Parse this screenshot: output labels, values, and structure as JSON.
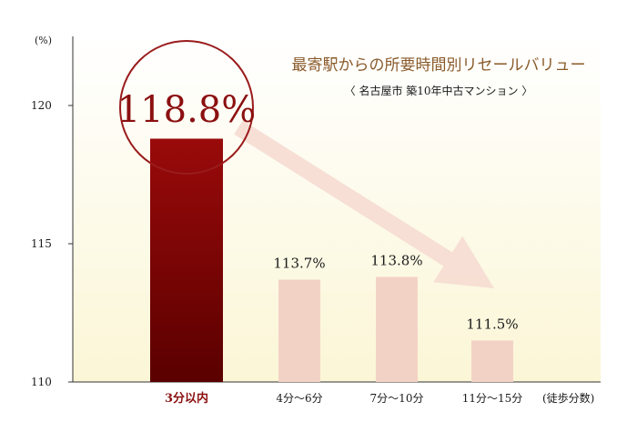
{
  "chart_data": {
    "type": "bar",
    "title": "最寄駅からの所要時間別リセールバリュー",
    "subtitle": "〈 名古屋市 築10年中古マンション 〉",
    "ylabel": "(%)",
    "xlabel": "(徒歩分数)",
    "ylim": [
      110,
      122.5
    ],
    "yticks": [
      110,
      115,
      120
    ],
    "categories": [
      "3分以内",
      "4分〜6分",
      "7分〜10分",
      "11分〜15分"
    ],
    "values": [
      118.8,
      113.7,
      113.8,
      111.5
    ],
    "value_labels": [
      "118.8%",
      "113.7%",
      "113.8%",
      "111.5%"
    ],
    "highlight_index": 0,
    "grid": false,
    "colors": {
      "highlight_top": "#9a0a0a",
      "highlight_bottom": "#5a0000",
      "bar": "#f3d2c6",
      "circle": "#9a1c1c",
      "arrow": "#f6dbd3",
      "title": "#8a5a2a",
      "text": "#1a1a1a",
      "highlight_label": "#8b1010",
      "bg_bottom": "#fbf6d6"
    }
  }
}
